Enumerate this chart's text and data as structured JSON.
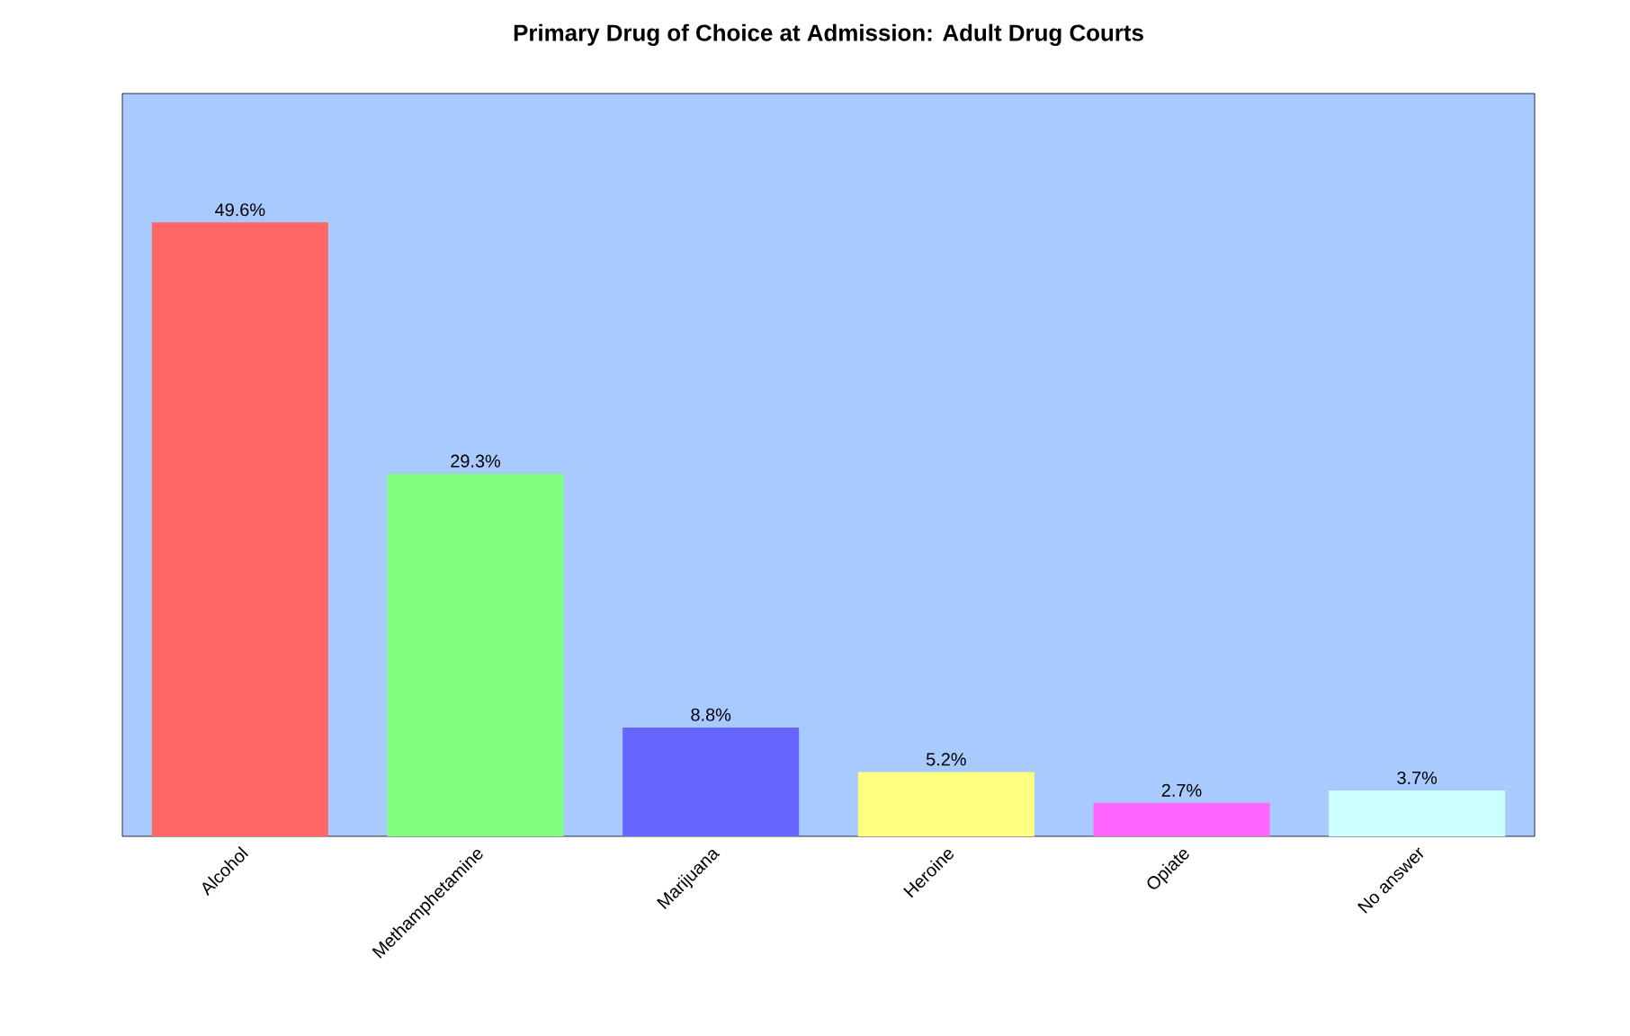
{
  "chart_data": {
    "type": "bar",
    "title": "Primary Drug of Choice at Admission: Adult Drug Courts",
    "categories": [
      "Alcohol",
      "Methamphetamine",
      "Marijuana",
      "Heroine",
      "Opiate",
      "No answer"
    ],
    "values": [
      49.6,
      29.3,
      8.8,
      5.2,
      2.7,
      3.7
    ],
    "value_labels": [
      "49.6%",
      "29.3%",
      "8.8%",
      "5.2%",
      "2.7%",
      "3.7%"
    ],
    "colors": [
      "#ff6666",
      "#80ff80",
      "#6666ff",
      "#ffff80",
      "#ff66ff",
      "#ccffff"
    ]
  }
}
